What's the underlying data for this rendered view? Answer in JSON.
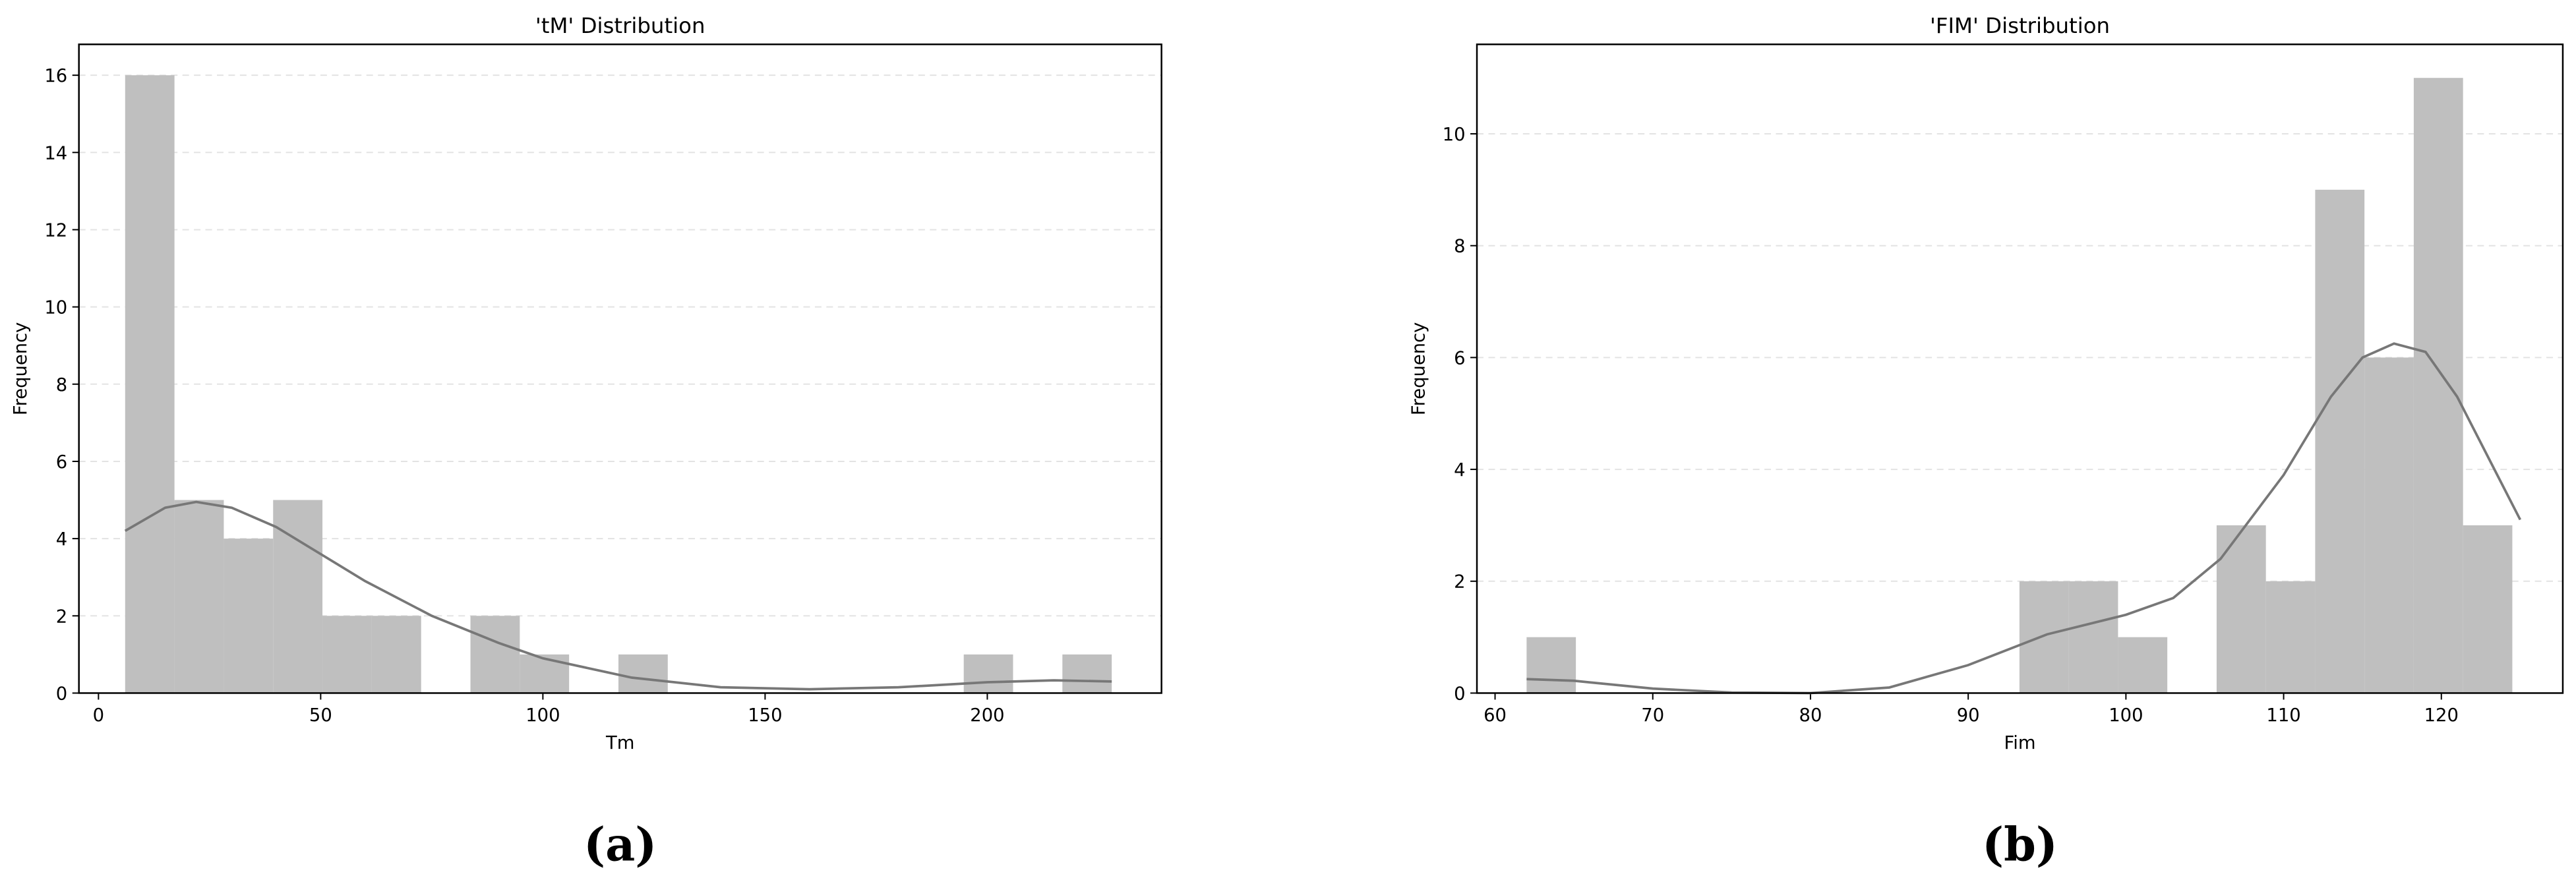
{
  "chart_data": [
    {
      "type": "histogram",
      "title": "'tM' Distribution",
      "x_label": "Tm",
      "y_label": "Frequency",
      "caption": "(a)",
      "bins": [
        6.0,
        17.1,
        28.2,
        39.3,
        50.4,
        61.5,
        72.6,
        83.7,
        94.8,
        105.9,
        117.0,
        128.1,
        139.2,
        150.3,
        161.4,
        172.5,
        183.6,
        194.7,
        205.8,
        216.9,
        228.0
      ],
      "counts": [
        16,
        5,
        4,
        5,
        2,
        2,
        0,
        2,
        1,
        0,
        1,
        0,
        0,
        0,
        0,
        0,
        0,
        1,
        0,
        1
      ],
      "color": "#bfbfbf",
      "line": {
        "x": [
          6,
          15,
          22,
          30,
          40,
          50,
          60,
          75,
          90,
          100,
          120,
          140,
          160,
          180,
          200,
          215,
          228
        ],
        "values": [
          4.2,
          4.8,
          4.95,
          4.8,
          4.3,
          3.6,
          2.9,
          2.0,
          1.3,
          0.9,
          0.4,
          0.15,
          0.1,
          0.15,
          0.28,
          0.33,
          0.3
        ],
        "color": "#777777"
      },
      "xlim": [
        -4.4,
        239.2
      ],
      "ylim": [
        0,
        16.8
      ],
      "xticks": [
        0,
        50,
        100,
        150,
        200
      ],
      "yticks": [
        0,
        2,
        4,
        6,
        8,
        10,
        12,
        14,
        16
      ],
      "grid": true
    },
    {
      "type": "histogram",
      "title": "'FIM' Distribution",
      "x_label": "Fim",
      "y_label": "Frequency",
      "caption": "(b)",
      "bins": [
        62.0,
        65.125,
        68.25,
        71.375,
        74.5,
        77.625,
        80.75,
        83.875,
        87.0,
        90.125,
        93.25,
        96.375,
        99.5,
        102.625,
        105.75,
        108.875,
        112.0,
        115.125,
        118.25,
        121.375,
        124.5
      ],
      "counts": [
        1,
        0,
        0,
        0,
        0,
        0,
        0,
        0,
        0,
        0,
        2,
        2,
        1,
        0,
        3,
        2,
        9,
        6,
        11,
        3
      ],
      "color": "#bfbfbf",
      "line": {
        "x": [
          62,
          65,
          70,
          75,
          80,
          85,
          90,
          95,
          100,
          103,
          106,
          110,
          113,
          115,
          117,
          119,
          121,
          123,
          125
        ],
        "values": [
          0.25,
          0.22,
          0.08,
          0.01,
          0.0,
          0.1,
          0.5,
          1.05,
          1.4,
          1.7,
          2.4,
          3.9,
          5.3,
          6.0,
          6.25,
          6.1,
          5.3,
          4.2,
          3.1
        ],
        "color": "#777777"
      },
      "xlim": [
        58.85,
        127.7
      ],
      "ylim": [
        0,
        11.6
      ],
      "xticks": [
        60,
        70,
        80,
        90,
        100,
        110,
        120
      ],
      "yticks": [
        0,
        2,
        4,
        6,
        8,
        10
      ],
      "grid": true
    }
  ]
}
